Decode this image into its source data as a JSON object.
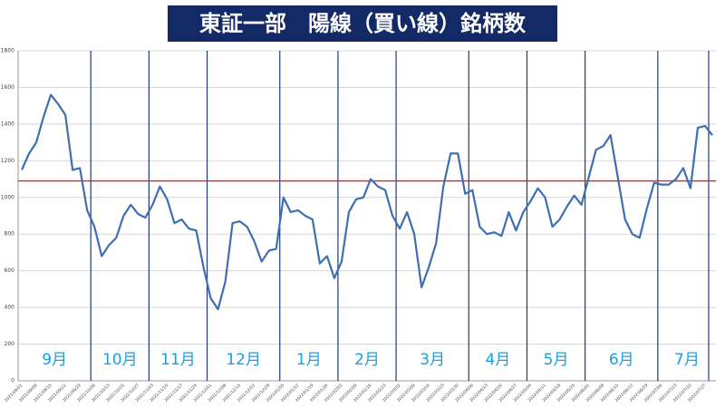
{
  "chart_data": {
    "type": "line",
    "title": "東証一部　陽線（買い線）銘柄数",
    "categories": [
      "2021/09/01",
      null,
      "2021/09/08",
      null,
      "2021/09/15",
      null,
      "2021/09/22",
      null,
      "2021/09/29",
      null,
      "2021/10/06",
      null,
      "2021/10/13",
      null,
      "2021/10/20",
      null,
      "2021/10/27",
      null,
      "2021/11/03",
      null,
      "2021/11/10",
      null,
      "2021/11/17",
      null,
      "2021/11/24",
      null,
      "2021/12/01",
      null,
      "2021/12/08",
      null,
      "2021/12/15",
      null,
      "2021/12/22",
      null,
      "2021/12/29",
      null,
      "2022/01/05",
      null,
      "2022/01/12",
      null,
      "2022/01/19",
      null,
      "2022/01/26",
      null,
      "2022/02/02",
      null,
      "2022/02/09",
      null,
      "2022/02/16",
      null,
      "2022/02/23",
      null,
      "2022/03/02",
      null,
      "2022/03/09",
      null,
      "2022/03/16",
      null,
      "2022/03/23",
      null,
      "2022/03/30",
      null,
      "2022/04/06",
      null,
      "2022/04/13",
      null,
      "2022/04/20",
      null,
      "2022/04/27",
      null,
      "2022/05/04",
      null,
      "2022/05/11",
      null,
      "2022/05/18",
      null,
      "2022/05/25",
      null,
      "2022/06/01",
      null,
      "2022/06/08",
      null,
      "2022/06/15",
      null,
      "2022/06/22",
      null,
      "2022/06/29",
      null,
      "2022/07/06",
      null,
      "2022/07/13",
      null,
      "2022/07/20",
      null,
      "2022/07/27",
      null
    ],
    "series": [
      {
        "name": "陽線銘柄数",
        "color": "#3f6fb0",
        "values": [
          1150,
          1240,
          1300,
          1440,
          1560,
          1510,
          1450,
          1150,
          1160,
          930,
          840,
          680,
          740,
          780,
          900,
          960,
          910,
          890,
          960,
          1060,
          990,
          860,
          880,
          830,
          820,
          620,
          450,
          390,
          540,
          860,
          870,
          840,
          760,
          650,
          710,
          720,
          1000,
          920,
          930,
          900,
          880,
          640,
          680,
          560,
          650,
          920,
          990,
          1000,
          1100,
          1060,
          1040,
          900,
          830,
          920,
          800,
          510,
          620,
          750,
          1060,
          1240,
          1240,
          1020,
          1040,
          840,
          800,
          810,
          790,
          920,
          820,
          920,
          980,
          1050,
          1000,
          840,
          880,
          950,
          1010,
          960,
          1110,
          1260,
          1280,
          1340,
          1110,
          880,
          800,
          780,
          940,
          1080,
          1070,
          1070,
          1100,
          1160,
          1050,
          1380,
          1390,
          1340
        ]
      }
    ],
    "month_labels": [
      "9月",
      "10月",
      "11月",
      "12月",
      "1月",
      "2月",
      "3月",
      "4月",
      "5月",
      "6月",
      "7月"
    ],
    "reference_line": 1090,
    "reference_color": "#e02020",
    "divider_color": "#1f3a7a",
    "month_label_color": "#1aa0e0",
    "ylim": [
      0,
      1800
    ],
    "yticks": [
      0,
      200,
      400,
      600,
      800,
      1000,
      1200,
      1400,
      1600,
      1800
    ],
    "grid": true
  }
}
